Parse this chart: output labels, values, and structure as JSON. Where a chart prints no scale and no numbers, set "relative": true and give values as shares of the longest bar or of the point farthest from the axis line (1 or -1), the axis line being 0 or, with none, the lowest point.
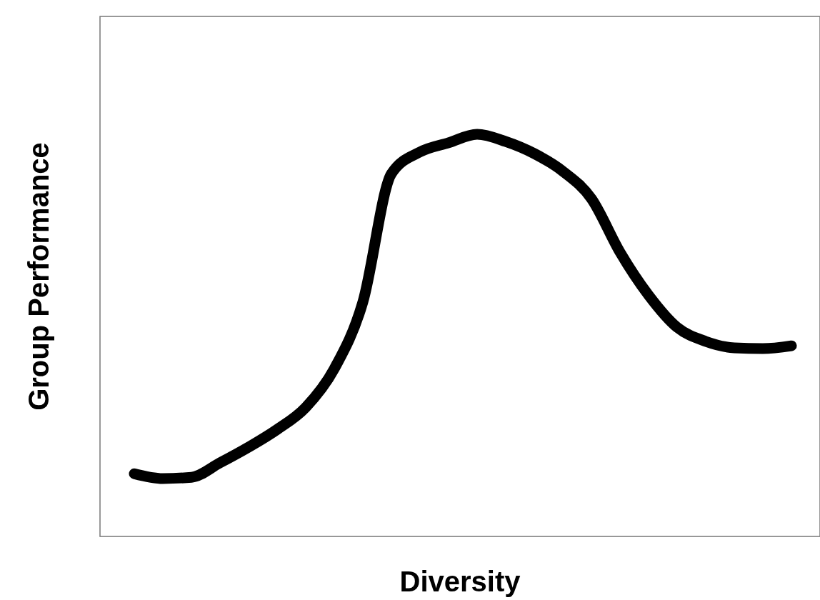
{
  "chart_data": {
    "type": "line",
    "relative": true,
    "xlabel": "Diversity",
    "ylabel": "Group Performance",
    "categories": [
      null,
      null,
      null,
      null,
      null,
      null,
      null,
      null,
      null,
      null,
      null,
      null,
      null,
      null,
      null,
      null,
      null,
      null,
      null,
      null,
      null,
      null,
      null,
      null
    ],
    "series": [
      {
        "color": "#000000",
        "values": [
          0.156,
          0.144,
          0.147,
          0.183,
          0.222,
          0.266,
          0.321,
          0.417,
          0.583,
          0.902,
          0.956,
          0.979,
          1,
          0.982,
          0.952,
          0.908,
          0.84,
          0.707,
          0.6,
          0.52,
          0.485,
          0.469,
          0.467,
          0.474
        ]
      }
    ]
  }
}
